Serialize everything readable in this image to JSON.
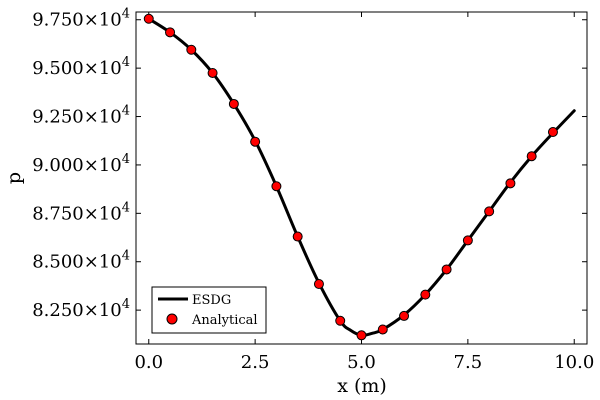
{
  "chart_data": {
    "type": "line",
    "xlabel": "x (m)",
    "ylabel": "p",
    "xlim": [
      -0.3,
      10.3
    ],
    "ylim": [
      80750,
      97900
    ],
    "xticks": [
      {
        "value": 0.0,
        "label": "0.0"
      },
      {
        "value": 2.5,
        "label": "2.5"
      },
      {
        "value": 5.0,
        "label": "5.0"
      },
      {
        "value": 7.5,
        "label": "7.5"
      },
      {
        "value": 10.0,
        "label": "10.0"
      }
    ],
    "yticks": [
      {
        "value": 82500,
        "mantissa": "8.250",
        "exponent": "4"
      },
      {
        "value": 85000,
        "mantissa": "8.500",
        "exponent": "4"
      },
      {
        "value": 87500,
        "mantissa": "8.750",
        "exponent": "4"
      },
      {
        "value": 90000,
        "mantissa": "9.000",
        "exponent": "4"
      },
      {
        "value": 92500,
        "mantissa": "9.250",
        "exponent": "4"
      },
      {
        "value": 95000,
        "mantissa": "9.500",
        "exponent": "4"
      },
      {
        "value": 97500,
        "mantissa": "9.750",
        "exponent": "4"
      }
    ],
    "legend_position": "bottom-left",
    "series": [
      {
        "name": "ESDG",
        "style": "line",
        "color": "#000000",
        "x": [
          0.0,
          0.5,
          1.0,
          1.5,
          2.0,
          2.5,
          3.0,
          3.5,
          4.0,
          4.5,
          4.75,
          5.0,
          5.25,
          5.5,
          6.0,
          6.5,
          7.0,
          7.5,
          8.0,
          8.5,
          9.0,
          9.5,
          10.0
        ],
        "y": [
          97550,
          96850,
          95950,
          94750,
          93150,
          91250,
          88900,
          86300,
          83900,
          81950,
          81450,
          81200,
          81300,
          81500,
          82250,
          83300,
          84600,
          86100,
          87600,
          89100,
          90450,
          91650,
          92800
        ]
      },
      {
        "name": "Analytical",
        "style": "marker",
        "color": "#ff0000",
        "x": [
          0.0,
          0.5,
          1.0,
          1.5,
          2.0,
          2.5,
          3.0,
          3.5,
          4.0,
          4.5,
          5.0,
          5.5,
          6.0,
          6.5,
          7.0,
          7.5,
          8.0,
          8.5,
          9.0,
          9.5
        ],
        "y": [
          97550,
          96850,
          95950,
          94750,
          93150,
          91200,
          88900,
          86300,
          83850,
          81950,
          81200,
          81500,
          82200,
          83300,
          84600,
          86100,
          87600,
          89050,
          90450,
          91700
        ]
      }
    ]
  }
}
